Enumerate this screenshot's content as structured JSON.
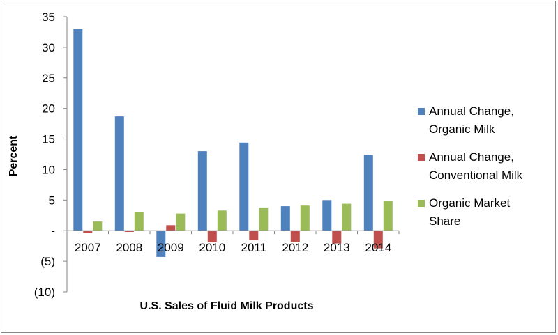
{
  "chart_data": {
    "type": "bar",
    "title": "",
    "xlabel": "U.S. Sales of Fluid Milk Products",
    "ylabel": "Percent",
    "ylim": [
      -10,
      35
    ],
    "y_ticks": [
      35,
      30,
      25,
      20,
      15,
      10,
      5,
      0,
      -5,
      -10
    ],
    "y_tick_labels": [
      "35",
      "30",
      "25",
      "20",
      "15",
      "10",
      "5",
      "-",
      "(5)",
      "(10)"
    ],
    "categories": [
      "2007",
      "2008",
      "2009",
      "2010",
      "2011",
      "2012",
      "2013",
      "2014"
    ],
    "series": [
      {
        "name_lines": [
          "Annual Change,",
          "Organic Milk"
        ],
        "color": "#4f81bd",
        "values": [
          33.0,
          18.7,
          -4.3,
          13.0,
          14.4,
          4.0,
          5.0,
          12.4
        ]
      },
      {
        "name_lines": [
          "Annual Change,",
          "Conventional Milk"
        ],
        "color": "#c0504d",
        "values": [
          -0.4,
          -0.2,
          0.9,
          -1.9,
          -1.5,
          -1.9,
          -2.1,
          -2.9
        ]
      },
      {
        "name_lines": [
          "Organic Market",
          "Share"
        ],
        "color": "#9bbb59",
        "values": [
          1.5,
          3.1,
          2.8,
          3.3,
          3.8,
          4.1,
          4.4,
          4.9
        ]
      }
    ],
    "grid": false,
    "legend_position": "right"
  }
}
